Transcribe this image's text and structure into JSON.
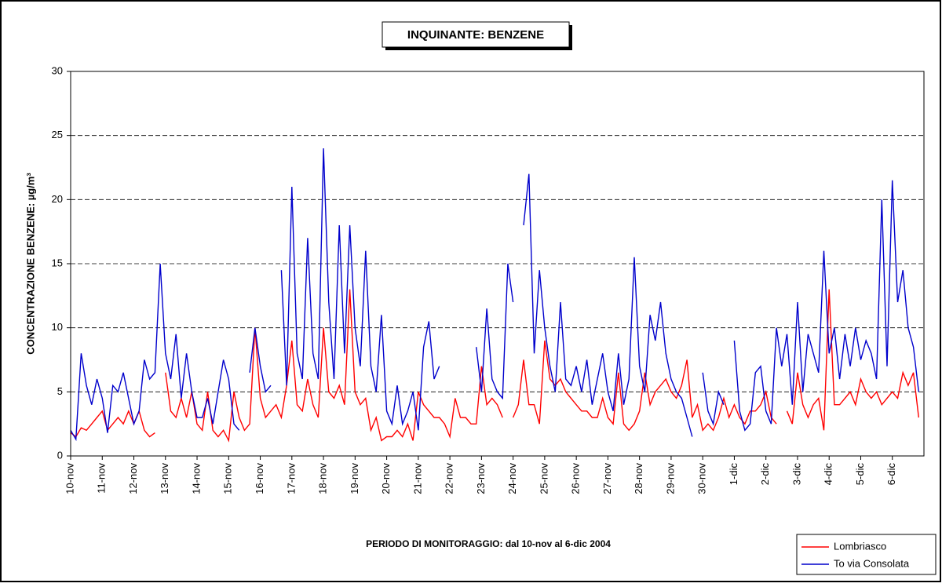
{
  "chart_data": {
    "type": "line",
    "title": "INQUINANTE: BENZENE",
    "y_label": "CONCENTRAZIONE BENZENE:  µg/m³",
    "x_label": "PERIODO DI MONITORAGGIO: dal 10-nov al 6-dic 2004",
    "categories": [
      "10-nov",
      null,
      null,
      null,
      null,
      null,
      "11-nov",
      null,
      null,
      null,
      null,
      null,
      "12-nov",
      null,
      null,
      null,
      null,
      null,
      "13-nov",
      null,
      null,
      null,
      null,
      null,
      "14-nov",
      null,
      null,
      null,
      null,
      null,
      "15-nov",
      null,
      null,
      null,
      null,
      null,
      "16-nov",
      null,
      null,
      null,
      null,
      null,
      "17-nov",
      null,
      null,
      null,
      null,
      null,
      "18-nov",
      null,
      null,
      null,
      null,
      null,
      "19-nov",
      null,
      null,
      null,
      null,
      null,
      "20-nov",
      null,
      null,
      null,
      null,
      null,
      "21-nov",
      null,
      null,
      null,
      null,
      null,
      "22-nov",
      null,
      null,
      null,
      null,
      null,
      "23-nov",
      null,
      null,
      null,
      null,
      null,
      "24-nov",
      null,
      null,
      null,
      null,
      null,
      "25-nov",
      null,
      null,
      null,
      null,
      null,
      "26-nov",
      null,
      null,
      null,
      null,
      null,
      "27-nov",
      null,
      null,
      null,
      null,
      null,
      "28-nov",
      null,
      null,
      null,
      null,
      null,
      "29-nov",
      null,
      null,
      null,
      null,
      null,
      "30-nov",
      null,
      null,
      null,
      null,
      null,
      "1-dic",
      null,
      null,
      null,
      null,
      null,
      "2-dic",
      null,
      null,
      null,
      null,
      null,
      "3-dic",
      null,
      null,
      null,
      null,
      null,
      "4-dic",
      null,
      null,
      null,
      null,
      null,
      "5-dic",
      null,
      null,
      null,
      null,
      null,
      "6-dic",
      null,
      null,
      null,
      null,
      null
    ],
    "series": [
      {
        "name": "Lombriasco",
        "color": "#ff0000",
        "values": [
          1.8,
          1.5,
          2.2,
          2.0,
          2.5,
          3.0,
          3.5,
          2.0,
          2.5,
          3.0,
          2.5,
          3.5,
          2.5,
          3.5,
          2.0,
          1.5,
          1.8,
          null,
          6.5,
          3.5,
          3.0,
          4.5,
          3.0,
          5.0,
          2.5,
          2.0,
          5.0,
          2.0,
          1.5,
          2.0,
          1.2,
          5.0,
          3.0,
          2.0,
          2.5,
          10.0,
          4.5,
          3.0,
          3.5,
          4.0,
          3.0,
          5.5,
          9.0,
          4.0,
          3.5,
          6.0,
          4.0,
          3.0,
          10.0,
          5.0,
          4.5,
          5.5,
          4.0,
          13.0,
          5.0,
          4.0,
          4.5,
          2.0,
          3.0,
          1.2,
          1.5,
          1.5,
          2.0,
          1.5,
          2.5,
          1.2,
          5.0,
          4.0,
          3.5,
          3.0,
          3.0,
          2.5,
          1.5,
          4.5,
          3.0,
          3.0,
          2.5,
          2.5,
          7.0,
          4.0,
          4.5,
          4.0,
          3.0,
          null,
          3.0,
          4.0,
          7.5,
          4.0,
          4.0,
          2.5,
          9.0,
          6.0,
          5.5,
          6.0,
          5.0,
          4.5,
          4.0,
          3.5,
          3.5,
          3.0,
          3.0,
          4.5,
          3.0,
          2.5,
          6.5,
          2.5,
          2.0,
          2.5,
          3.5,
          6.5,
          4.0,
          5.0,
          5.5,
          6.0,
          5.0,
          4.5,
          5.5,
          7.5,
          3.0,
          4.0,
          2.0,
          2.5,
          2.0,
          3.0,
          4.5,
          3.0,
          4.0,
          3.0,
          2.5,
          3.5,
          3.5,
          4.0,
          5.0,
          3.0,
          2.5,
          null,
          3.5,
          2.5,
          6.5,
          4.0,
          3.0,
          4.0,
          4.5,
          2.0,
          13.0,
          4.0,
          4.0,
          4.5,
          5.0,
          4.0,
          6.0,
          5.0,
          4.5,
          5.0,
          4.0,
          4.5,
          5.0,
          4.5,
          6.5,
          5.5,
          6.5,
          3.0
        ]
      },
      {
        "name": "To via Consolata",
        "color": "#0000cc",
        "values": [
          2.0,
          1.3,
          8.0,
          5.5,
          4.0,
          6.0,
          4.5,
          1.8,
          5.5,
          5.0,
          6.5,
          4.5,
          2.5,
          3.5,
          7.5,
          6.0,
          6.5,
          15.0,
          8.0,
          6.0,
          9.5,
          4.5,
          8.0,
          5.0,
          3.0,
          3.0,
          4.5,
          2.5,
          5.0,
          7.5,
          6.0,
          2.5,
          2.0,
          null,
          6.5,
          10.0,
          7.0,
          5.0,
          5.5,
          null,
          14.5,
          5.5,
          21.0,
          8.0,
          6.0,
          17.0,
          8.0,
          6.0,
          24.0,
          12.0,
          6.0,
          18.0,
          8.0,
          18.0,
          10.0,
          7.0,
          16.0,
          7.0,
          5.0,
          11.0,
          3.5,
          2.5,
          5.5,
          2.5,
          3.5,
          5.0,
          2.0,
          8.5,
          10.5,
          6.0,
          7.0,
          null,
          null,
          null,
          null,
          null,
          null,
          8.5,
          5.0,
          11.5,
          6.0,
          5.0,
          4.5,
          15.0,
          12.0,
          null,
          18.0,
          22.0,
          8.0,
          14.5,
          10.0,
          7.0,
          5.0,
          12.0,
          6.0,
          5.5,
          7.0,
          5.0,
          7.5,
          4.0,
          6.0,
          8.0,
          5.0,
          3.5,
          8.0,
          4.0,
          6.0,
          15.5,
          7.0,
          5.0,
          11.0,
          9.0,
          12.0,
          8.0,
          6.0,
          5.0,
          4.5,
          3.0,
          1.5,
          null,
          6.5,
          3.5,
          2.5,
          5.0,
          4.0,
          null,
          9.0,
          3.5,
          2.0,
          2.5,
          6.5,
          7.0,
          3.5,
          2.5,
          10.0,
          7.0,
          9.5,
          4.0,
          12.0,
          5.0,
          9.5,
          8.0,
          6.5,
          16.0,
          8.0,
          10.0,
          6.0,
          9.5,
          7.0,
          10.0,
          7.5,
          9.0,
          8.0,
          6.0,
          20.0,
          7.0,
          21.5,
          12.0,
          14.5,
          10.0,
          8.5,
          5.0
        ]
      }
    ],
    "ylim": [
      0,
      30
    ],
    "yticks": [
      0,
      5,
      10,
      15,
      20,
      25,
      30
    ],
    "grid": true
  }
}
